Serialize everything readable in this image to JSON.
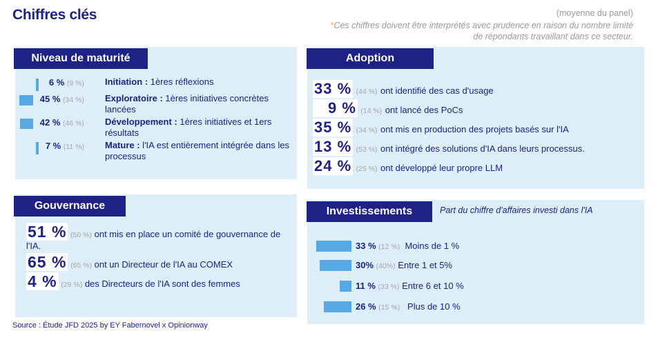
{
  "title": "Chiffres clés",
  "panel_note": "(moyenne du panel)",
  "caveat_star": "*",
  "caveat": "Ces chiffres doivent être interprétés avec prudence en raison du nombre limité de répondants travaillant dans ce secteur.",
  "maturite": {
    "heading": "Niveau de maturité",
    "rows": [
      {
        "pct": "6 %",
        "prev": "(9 %)",
        "label": "Initiation :",
        "text": " 1ères réflexions",
        "value": 6
      },
      {
        "pct": "45 %",
        "prev": "(34 %)",
        "label": "Exploratoire :",
        "text": " 1ères initiatives concrètes lancées",
        "value": 45
      },
      {
        "pct": "42 %",
        "prev": "(46 %)",
        "label": "Développement :",
        "text": " 1ères initiatives et 1ers résultats",
        "value": 42
      },
      {
        "pct": "7 %",
        "prev": "(11 %)",
        "label": "Mature :",
        "text": " l'IA est entièrement intégrée dans les processus",
        "value": 7
      }
    ]
  },
  "adoption": {
    "heading": "Adoption",
    "rows": [
      {
        "pct": "33 %",
        "prev": "(44 %)",
        "text": "ont identifié des cas d'usage"
      },
      {
        "pct": "9 %",
        "prev": "(14 %)",
        "text": "ont lancé des PoCs"
      },
      {
        "pct": "35 %",
        "prev": "(34 %)",
        "text": "ont mis en production des projets basés sur l'IA"
      },
      {
        "pct": "13 %",
        "prev": "(53 %)",
        "text": "ont intégré des solutions d'IA dans leurs processus."
      },
      {
        "pct": "24 %",
        "prev": "(25 %)",
        "text": "ont développé leur propre LLM"
      }
    ]
  },
  "gouvernance": {
    "heading": "Gouvernance",
    "rows": [
      {
        "pct": "51 %",
        "prev": "(50 %)",
        "text": "ont mis en place un comité de gouvernance de l'IA."
      },
      {
        "pct": "65 %",
        "prev": "(65 %)",
        "text": "ont un Directeur de l'IA au COMEX"
      },
      {
        "pct": "4 %",
        "prev": "(29 %)",
        "text": "des Directeurs de l'IA sont des femmes"
      }
    ]
  },
  "investissements": {
    "heading": "Investissements",
    "subtitle": "Part du chiffre d'affaires investi dans l'IA",
    "rows": [
      {
        "pct": "33 %",
        "prev": "(12 %)",
        "text": "Moins de 1 %",
        "value": 33
      },
      {
        "pct": "30%",
        "prev": "(40%)",
        "text": "Entre 1 et 5%",
        "value": 30
      },
      {
        "pct": "11 %",
        "prev": "(33 %)",
        "text": "Entre 6 et 10 %",
        "value": 11
      },
      {
        "pct": "26 %",
        "prev": "(15 %)",
        "text": "Plus de 10 %",
        "value": 26
      }
    ]
  },
  "source": "Source : Étude JFD 2025 by EY Fabernovel x Opinionway"
}
